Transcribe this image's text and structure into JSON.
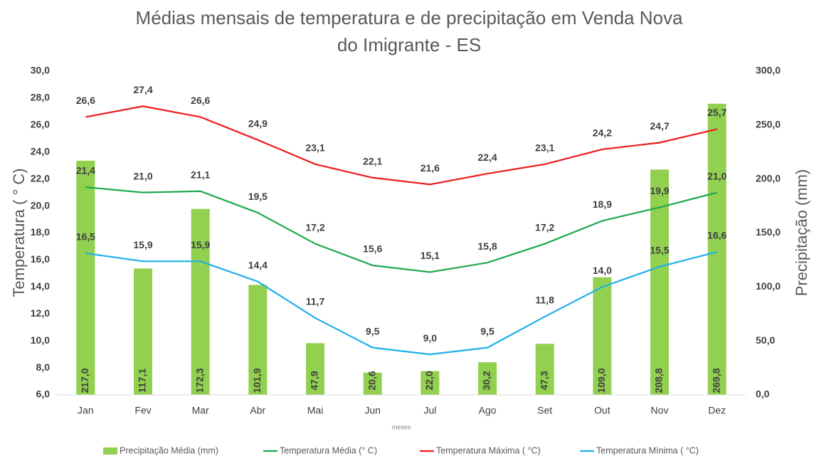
{
  "chart_data": {
    "type": "combo",
    "title": "Médias mensais de temperatura e de precipitação em Venda Nova do Imigrante - ES",
    "xlabel": "meses",
    "ylabel": "Temperatura ( ° C)",
    "y2label": "Precipitação (mm)",
    "categories": [
      "Jan",
      "Fev",
      "Mar",
      "Abr",
      "Mai",
      "Jun",
      "Jul",
      "Ago",
      "Set",
      "Out",
      "Nov",
      "Dez"
    ],
    "ylim": [
      6,
      30
    ],
    "yticks": [
      {
        "value": 6,
        "label": "6,0"
      },
      {
        "value": 8,
        "label": "8,0"
      },
      {
        "value": 10,
        "label": "10,0"
      },
      {
        "value": 12,
        "label": "12,0"
      },
      {
        "value": 14,
        "label": "14,0"
      },
      {
        "value": 16,
        "label": "16,0"
      },
      {
        "value": 18,
        "label": "18,0"
      },
      {
        "value": 20,
        "label": "20,0"
      },
      {
        "value": 22,
        "label": "22,0"
      },
      {
        "value": 24,
        "label": "24,0"
      },
      {
        "value": 26,
        "label": "26,0"
      },
      {
        "value": 28,
        "label": "28,0"
      },
      {
        "value": 30,
        "label": "30,0"
      }
    ],
    "y2lim": [
      0,
      300
    ],
    "y2ticks": [
      {
        "value": 0,
        "label": "0,0"
      },
      {
        "value": 50,
        "label": "50,0"
      },
      {
        "value": 100,
        "label": "100,0"
      },
      {
        "value": 150,
        "label": "150,0"
      },
      {
        "value": 200,
        "label": "200,0"
      },
      {
        "value": 250,
        "label": "250,0"
      },
      {
        "value": 300,
        "label": "300,0"
      }
    ],
    "legend": "bottom",
    "series": [
      {
        "name": "Precipitação Média (mm)",
        "type": "bar",
        "axis": "y2",
        "color": "#92d050",
        "values": [
          217.0,
          117.1,
          172.3,
          101.9,
          47.9,
          20.6,
          22.0,
          30.2,
          47.3,
          109.0,
          208.8,
          269.8
        ],
        "value_labels": [
          "217,0",
          "117,1",
          "172,3",
          "101,9",
          "47,9",
          "20,6",
          "22,0",
          "30,2",
          "47,3",
          "109,0",
          "208,8",
          "269,8"
        ]
      },
      {
        "name": "Temperatura Média (° C)",
        "type": "line",
        "color": "#1fa84f",
        "values": [
          21.4,
          21.0,
          21.1,
          19.5,
          17.2,
          15.6,
          15.1,
          15.8,
          17.2,
          18.9,
          19.9,
          21.0
        ],
        "value_labels": [
          "21,4",
          "21,0",
          "21,1",
          "19,5",
          "17,2",
          "15,6",
          "15,1",
          "15,8",
          "17,2",
          "18,9",
          "19,9",
          "21,0"
        ]
      },
      {
        "name": "Temperatura Máxima ( °C)",
        "type": "line",
        "color": "#ee1c1c",
        "values": [
          26.6,
          27.4,
          26.6,
          24.9,
          23.1,
          22.1,
          21.6,
          22.4,
          23.1,
          24.2,
          24.7,
          25.7
        ],
        "value_labels": [
          "26,6",
          "27,4",
          "26,6",
          "24,9",
          "23,1",
          "22,1",
          "21,6",
          "22,4",
          "23,1",
          "24,2",
          "24,7",
          "25,7"
        ]
      },
      {
        "name": "Temperatura Mínima ( °C)",
        "type": "line",
        "color": "#1eb0e8",
        "values": [
          16.5,
          15.9,
          15.9,
          14.4,
          11.7,
          9.5,
          9.0,
          9.5,
          11.8,
          14.0,
          15.5,
          16.6
        ],
        "value_labels": [
          "16,5",
          "15,9",
          "15,9",
          "14,4",
          "11,7",
          "9,5",
          "9,0",
          "9,5",
          "11,8",
          "14,0",
          "15,5",
          "16,6"
        ]
      }
    ]
  }
}
